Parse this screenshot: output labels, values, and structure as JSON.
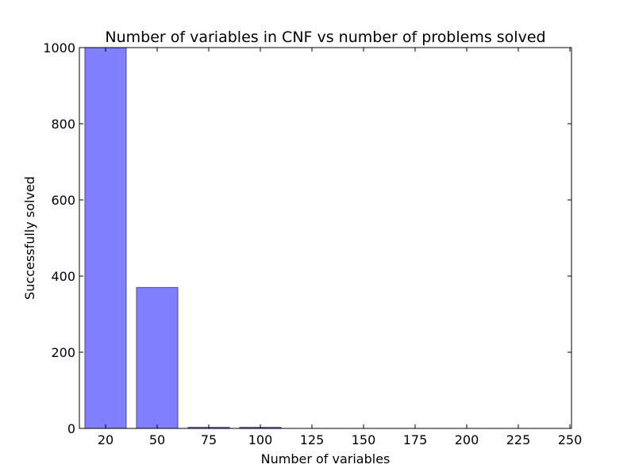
{
  "chart_data": {
    "type": "bar",
    "title": "Number of variables in CNF vs number of problems solved",
    "xlabel": "Number of variables",
    "ylabel": "Successfully solved",
    "categories": [
      "20",
      "50",
      "75",
      "100",
      "125",
      "150",
      "175",
      "200",
      "225",
      "250"
    ],
    "values": [
      1000,
      370,
      3,
      3,
      0,
      0,
      0,
      0,
      0,
      0
    ],
    "ylim": [
      0,
      1000
    ],
    "yticks": [
      0,
      200,
      400,
      600,
      800,
      1000
    ],
    "grid": false,
    "legend": "none",
    "bar_color": "#8080ff",
    "bar_edge_color": "#4a4a8a"
  }
}
